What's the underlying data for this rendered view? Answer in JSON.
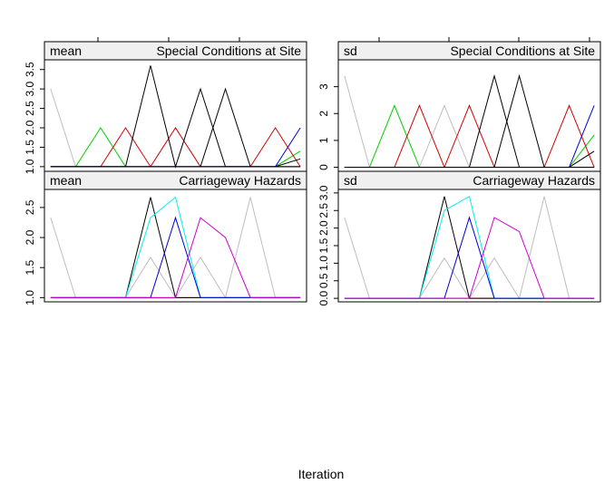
{
  "figure": {
    "xlabel": "Iteration"
  },
  "chart_data": [
    {
      "type": "line",
      "strip_left": "mean",
      "strip_right": "Special  Conditions  at  Site",
      "x": [
        1,
        2,
        3,
        4,
        5,
        6,
        7,
        8,
        9,
        10,
        11
      ],
      "xlim": [
        0.75,
        11.25
      ],
      "ylim": [
        0.88,
        3.75
      ],
      "y_ticks": [
        1.0,
        1.5,
        2.0,
        2.5,
        3.0,
        3.5
      ],
      "y_tick_labels": [
        "1.0",
        "1.5",
        "2.0",
        "2.5",
        "3.0",
        "3.5"
      ],
      "series": [
        {
          "color": "#bebebe",
          "values": [
            3.0,
            1.0,
            1.0,
            1.0,
            1.0,
            2.0,
            1.0,
            1.0,
            1.0,
            1.0,
            1.0
          ]
        },
        {
          "color": "#00cd00",
          "values": [
            1.0,
            1.0,
            2.0,
            1.0,
            1.0,
            1.0,
            1.0,
            1.0,
            1.0,
            1.0,
            1.4
          ]
        },
        {
          "color": "#cd0000",
          "values": [
            1.0,
            1.0,
            1.0,
            2.0,
            1.0,
            2.0,
            1.0,
            1.0,
            1.0,
            2.0,
            1.0
          ]
        },
        {
          "color": "#000000",
          "values": [
            1.0,
            1.0,
            1.0,
            1.0,
            3.6,
            1.0,
            3.0,
            1.0,
            1.0,
            1.0,
            1.0
          ]
        },
        {
          "color": "#000000",
          "values": [
            1.0,
            1.0,
            1.0,
            1.0,
            1.0,
            1.0,
            1.0,
            3.0,
            1.0,
            1.0,
            1.0
          ]
        },
        {
          "color": "#0000cd",
          "values": [
            1.0,
            1.0,
            1.0,
            1.0,
            1.0,
            1.0,
            1.0,
            1.0,
            1.0,
            1.0,
            2.0
          ]
        },
        {
          "color": "#000000",
          "values": [
            1.0,
            1.0,
            1.0,
            1.0,
            1.0,
            1.0,
            1.0,
            1.0,
            1.0,
            1.0,
            1.2
          ]
        }
      ]
    },
    {
      "type": "line",
      "strip_left": "sd",
      "strip_right": "Special  Conditions  at  Site",
      "x": [
        1,
        2,
        3,
        4,
        5,
        6,
        7,
        8,
        9,
        10,
        11
      ],
      "xlim": [
        0.75,
        11.25
      ],
      "ylim": [
        -0.15,
        4.0
      ],
      "y_ticks": [
        0,
        1,
        2,
        3
      ],
      "y_tick_labels": [
        "0",
        "1",
        "2",
        "3"
      ],
      "series": [
        {
          "color": "#bebebe",
          "values": [
            3.4,
            0.0,
            0.0,
            0.0,
            2.3,
            0.0,
            0.0,
            0.0,
            0.0,
            0.0,
            0.0
          ]
        },
        {
          "color": "#00cd00",
          "values": [
            0.0,
            0.0,
            2.3,
            0.0,
            0.0,
            0.0,
            0.0,
            0.0,
            0.0,
            0.0,
            1.2
          ]
        },
        {
          "color": "#cd0000",
          "values": [
            0.0,
            0.0,
            0.0,
            2.3,
            0.0,
            2.3,
            0.0,
            0.0,
            0.0,
            2.3,
            0.0
          ]
        },
        {
          "color": "#000000",
          "values": [
            0.0,
            0.0,
            0.0,
            0.0,
            0.0,
            0.0,
            3.4,
            0.0,
            0.0,
            0.0,
            0.0
          ]
        },
        {
          "color": "#000000",
          "values": [
            0.0,
            0.0,
            0.0,
            0.0,
            0.0,
            0.0,
            0.0,
            3.4,
            0.0,
            0.0,
            0.0
          ]
        },
        {
          "color": "#0000cd",
          "values": [
            0.0,
            0.0,
            0.0,
            0.0,
            0.0,
            0.0,
            0.0,
            0.0,
            0.0,
            0.0,
            2.3
          ]
        },
        {
          "color": "#000000",
          "values": [
            0.0,
            0.0,
            0.0,
            0.0,
            0.0,
            0.0,
            0.0,
            0.0,
            0.0,
            0.0,
            0.6
          ]
        }
      ]
    },
    {
      "type": "line",
      "strip_left": "mean",
      "strip_right": "Carriageway  Hazards",
      "x": [
        1,
        2,
        3,
        4,
        5,
        6,
        7,
        8,
        9,
        10,
        11
      ],
      "xlim": [
        0.75,
        11.25
      ],
      "ylim": [
        0.93,
        2.8
      ],
      "y_ticks": [
        1.0,
        1.5,
        2.0,
        2.5
      ],
      "y_tick_labels": [
        "1.0",
        "1.5",
        "2.0",
        "2.5"
      ],
      "series": [
        {
          "color": "#bebebe",
          "values": [
            2.33,
            1.0,
            1.0,
            1.0,
            1.67,
            1.0,
            1.67,
            1.0,
            2.67,
            1.0,
            1.0
          ]
        },
        {
          "color": "#cd0000",
          "values": [
            1.0,
            1.0,
            1.0,
            1.0,
            1.0,
            1.0,
            1.0,
            1.0,
            1.0,
            1.0,
            1.0
          ]
        },
        {
          "color": "#000000",
          "values": [
            1.0,
            1.0,
            1.0,
            1.0,
            2.67,
            1.0,
            1.0,
            1.0,
            1.0,
            1.0,
            1.0
          ]
        },
        {
          "color": "#00eeee",
          "values": [
            1.0,
            1.0,
            1.0,
            1.0,
            2.33,
            2.67,
            1.0,
            1.0,
            1.0,
            1.0,
            1.0
          ]
        },
        {
          "color": "#0000cd",
          "values": [
            1.0,
            1.0,
            1.0,
            1.0,
            1.0,
            2.33,
            1.0,
            1.0,
            1.0,
            1.0,
            1.0
          ]
        },
        {
          "color": "#cd00cd",
          "values": [
            1.0,
            1.0,
            1.0,
            1.0,
            1.0,
            1.0,
            2.33,
            2.0,
            1.0,
            1.0,
            1.0
          ]
        }
      ]
    },
    {
      "type": "line",
      "strip_left": "sd",
      "strip_right": "Carriageway  Hazards",
      "x": [
        1,
        2,
        3,
        4,
        5,
        6,
        7,
        8,
        9,
        10,
        11
      ],
      "xlim": [
        0.75,
        11.25
      ],
      "ylim": [
        -0.1,
        3.1
      ],
      "y_ticks": [
        0.0,
        0.5,
        1.0,
        1.5,
        2.0,
        2.5,
        3.0
      ],
      "y_tick_labels": [
        "0.0",
        "0.5",
        "1.0",
        "1.5",
        "2.0",
        "2.5",
        "3.0"
      ],
      "series": [
        {
          "color": "#bebebe",
          "values": [
            2.3,
            0.0,
            0.0,
            0.0,
            1.15,
            0.0,
            1.15,
            0.0,
            2.9,
            0.0,
            0.0
          ]
        },
        {
          "color": "#cd0000",
          "values": [
            0.0,
            0.0,
            0.0,
            0.0,
            0.0,
            0.0,
            0.0,
            0.0,
            0.0,
            0.0,
            0.0
          ]
        },
        {
          "color": "#000000",
          "values": [
            0.0,
            0.0,
            0.0,
            0.0,
            2.9,
            0.0,
            0.0,
            0.0,
            0.0,
            0.0,
            0.0
          ]
        },
        {
          "color": "#00eeee",
          "values": [
            0.0,
            0.0,
            0.0,
            0.0,
            2.5,
            2.9,
            0.0,
            0.0,
            0.0,
            0.0,
            0.0
          ]
        },
        {
          "color": "#0000cd",
          "values": [
            0.0,
            0.0,
            0.0,
            0.0,
            0.0,
            2.3,
            0.0,
            0.0,
            0.0,
            0.0,
            0.0
          ]
        },
        {
          "color": "#cd00cd",
          "values": [
            0.0,
            0.0,
            0.0,
            0.0,
            0.0,
            0.0,
            2.3,
            1.9,
            0.0,
            0.0,
            0.0
          ]
        }
      ]
    }
  ]
}
